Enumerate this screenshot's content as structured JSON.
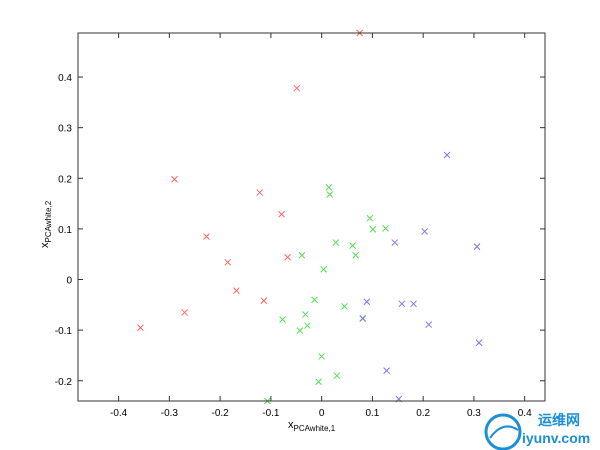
{
  "chart_data": {
    "type": "scatter",
    "title": "",
    "xlabel": "x",
    "xlabel_sub": "PCAwhite,1",
    "ylabel": "x",
    "ylabel_sub": "PCAwhite,2",
    "xlim": [
      -0.48,
      0.44
    ],
    "ylim": [
      -0.24,
      0.487
    ],
    "xticks": [
      -0.4,
      -0.3,
      -0.2,
      -0.1,
      0,
      0.1,
      0.2,
      0.3,
      0.4
    ],
    "xtick_labels": [
      "-0.4",
      "-0.3",
      "-0.2",
      "-0.1",
      "0",
      "0.1",
      "0.2",
      "0.3",
      "0.4"
    ],
    "yticks": [
      -0.2,
      -0.1,
      0,
      0.1,
      0.2,
      0.3,
      0.4
    ],
    "ytick_labels": [
      "-0.2",
      "-0.1",
      "0",
      "0.1",
      "0.2",
      "0.3",
      "0.4"
    ],
    "grid": false,
    "marker": "x",
    "series": [
      {
        "color": "#ff6666",
        "points": [
          [
            0.075,
            0.487
          ],
          [
            -0.049,
            0.378
          ],
          [
            -0.29,
            0.198
          ],
          [
            -0.122,
            0.172
          ],
          [
            -0.079,
            0.129
          ],
          [
            -0.227,
            0.085
          ],
          [
            -0.185,
            0.034
          ],
          [
            -0.067,
            0.044
          ],
          [
            -0.168,
            -0.022
          ],
          [
            -0.114,
            -0.042
          ],
          [
            -0.27,
            -0.065
          ],
          [
            -0.357,
            -0.095
          ]
        ]
      },
      {
        "color": "#55dd55",
        "points": [
          [
            0.014,
            0.182
          ],
          [
            0.016,
            0.168
          ],
          [
            0.095,
            0.121
          ],
          [
            0.126,
            0.101
          ],
          [
            0.101,
            0.099
          ],
          [
            -0.039,
            0.048
          ],
          [
            0.028,
            0.073
          ],
          [
            0.061,
            0.067
          ],
          [
            0.067,
            0.048
          ],
          [
            0.004,
            0.02
          ],
          [
            -0.014,
            -0.04
          ],
          [
            0.045,
            -0.053
          ],
          [
            -0.077,
            -0.079
          ],
          [
            -0.032,
            -0.069
          ],
          [
            -0.028,
            -0.091
          ],
          [
            -0.043,
            -0.101
          ],
          [
            0,
            -0.152
          ],
          [
            0.03,
            -0.19
          ],
          [
            -0.006,
            -0.202
          ],
          [
            -0.107,
            -0.24
          ],
          [
            0.081,
            -0.077
          ]
        ]
      },
      {
        "color": "#7777ee",
        "points": [
          [
            0.247,
            0.246
          ],
          [
            0.203,
            0.095
          ],
          [
            0.144,
            0.073
          ],
          [
            0.306,
            0.065
          ],
          [
            0.089,
            -0.044
          ],
          [
            0.158,
            -0.048
          ],
          [
            0.181,
            -0.048
          ],
          [
            0.211,
            -0.089
          ],
          [
            0.31,
            -0.125
          ],
          [
            0.128,
            -0.18
          ],
          [
            0.152,
            -0.236
          ],
          [
            0.081,
            -0.077
          ]
        ]
      }
    ]
  },
  "watermark": {
    "text_cn": "运维网",
    "text_url": "iyunv.com"
  }
}
